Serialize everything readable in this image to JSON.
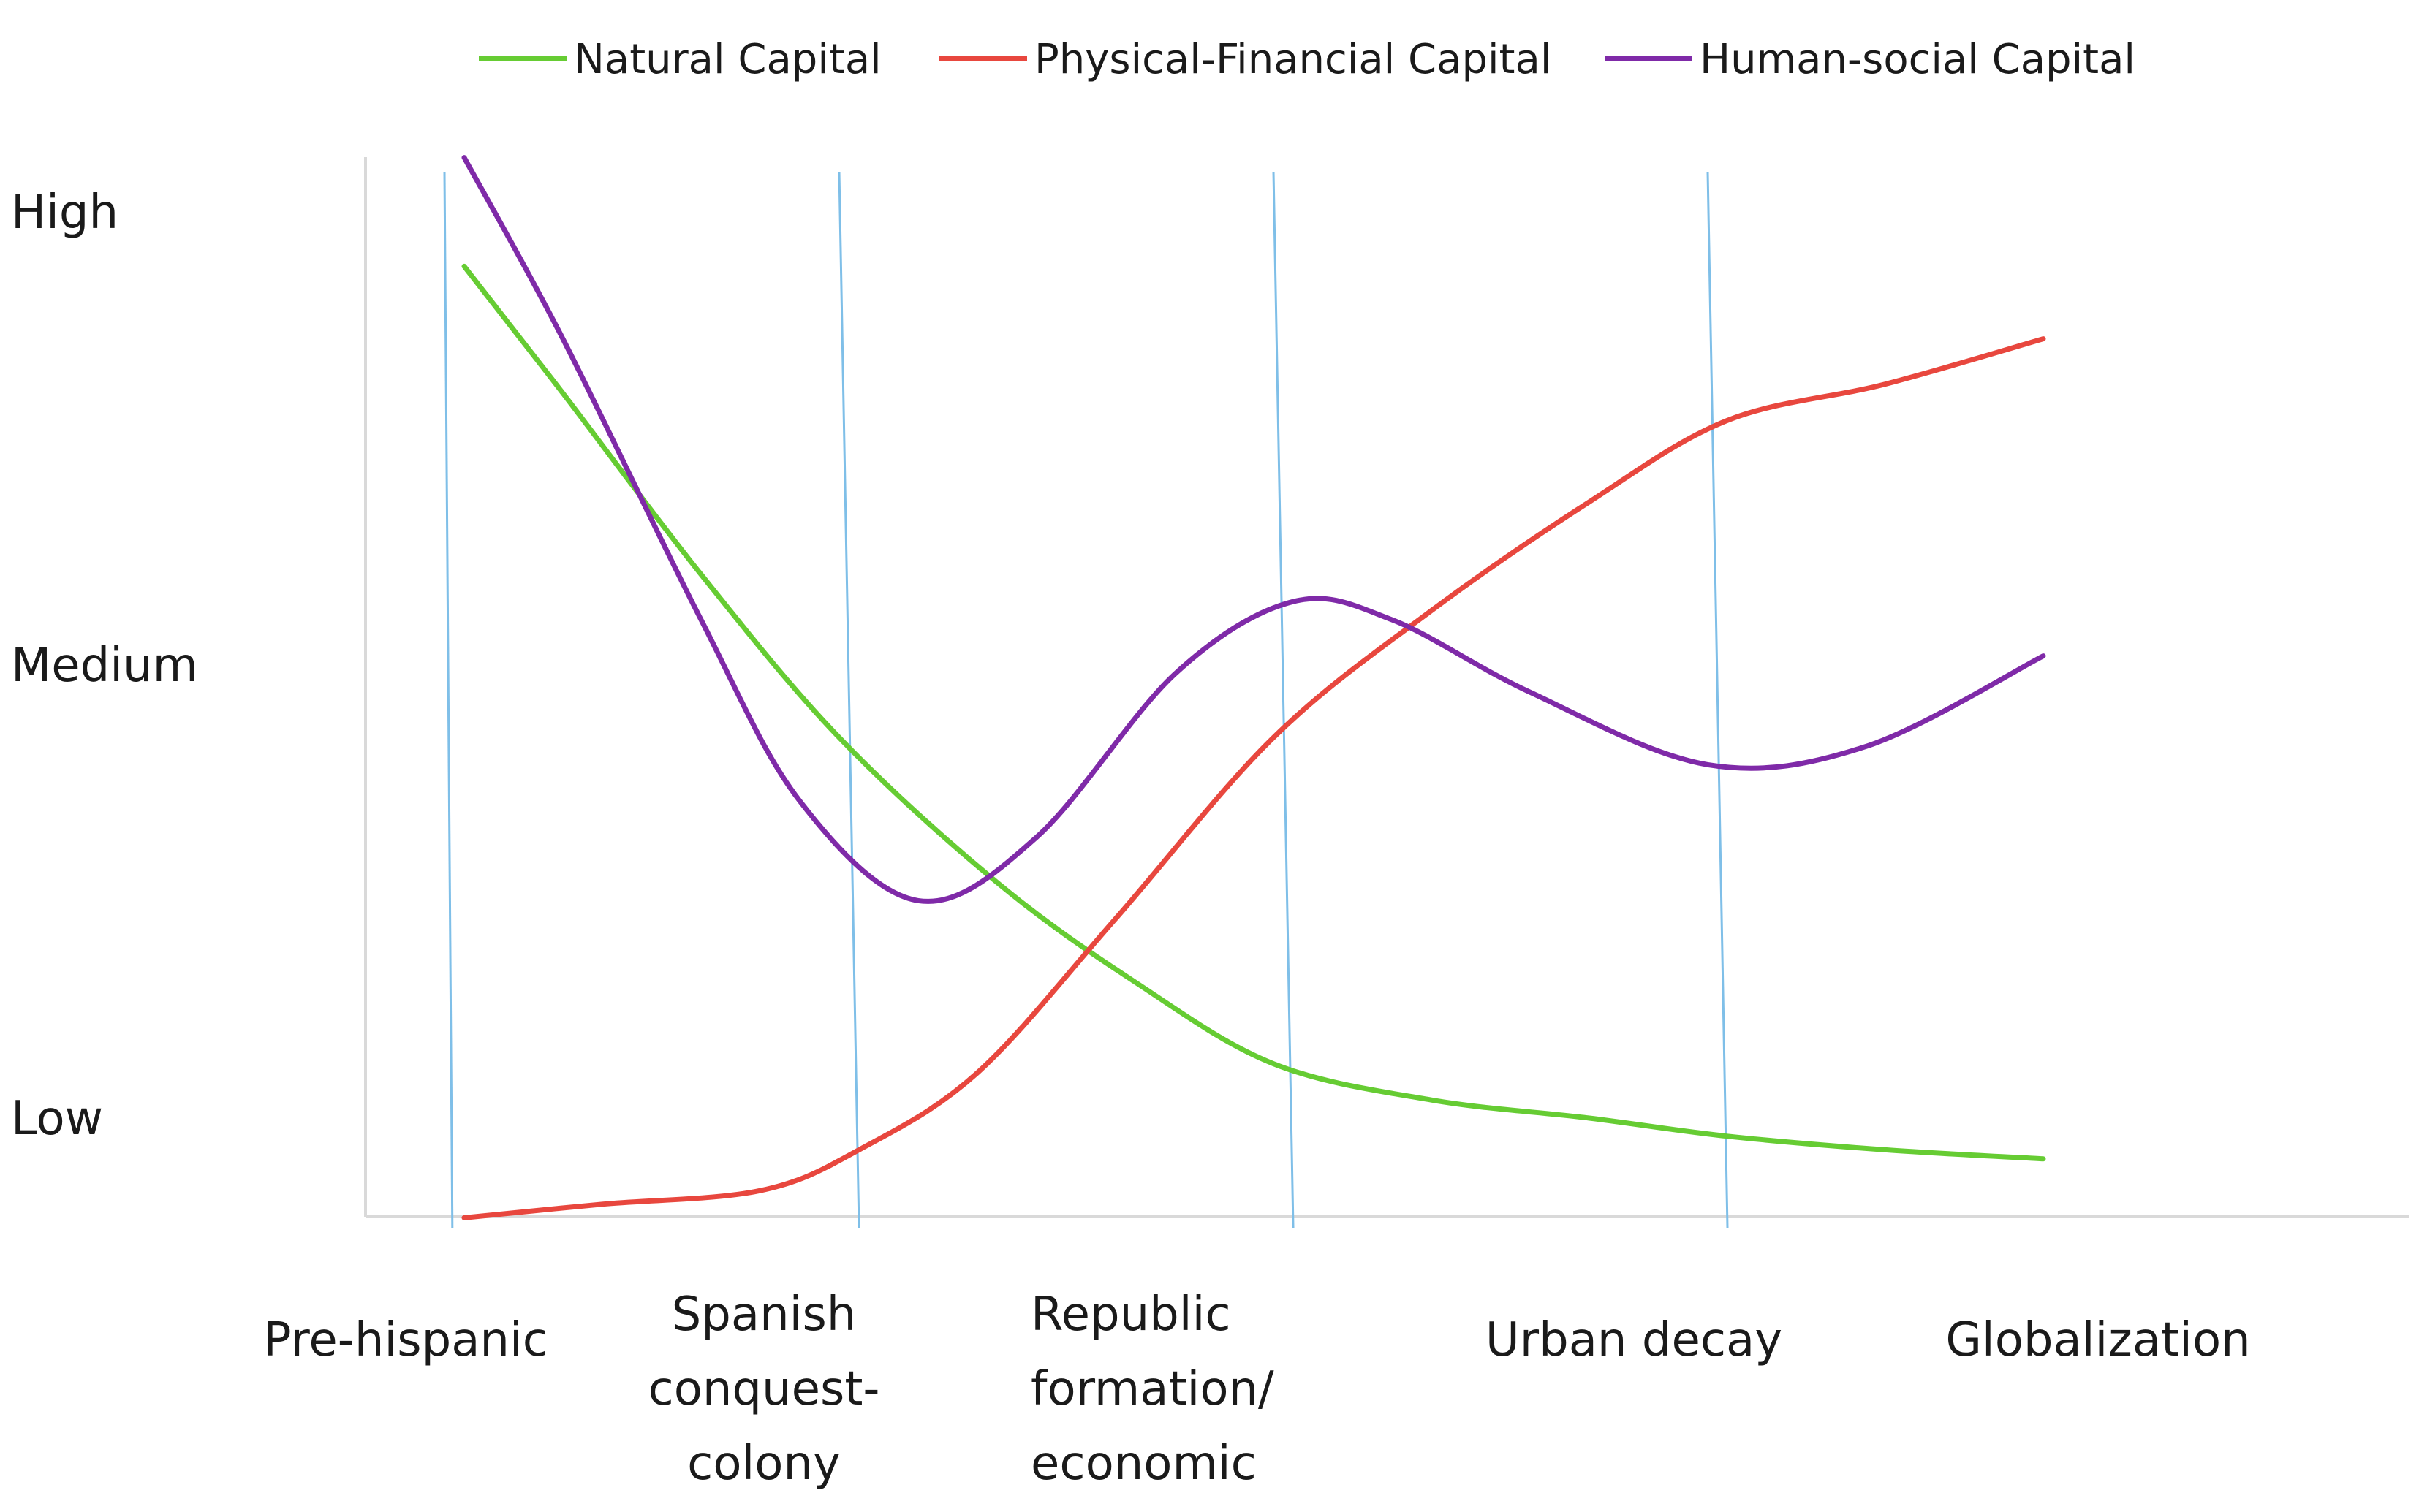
{
  "chart_data": {
    "type": "line",
    "title": "",
    "xlabel": "",
    "ylabel": "",
    "y_tick_labels": [
      "High",
      "Medium",
      "Low"
    ],
    "y_tick_values": [
      1,
      0.5,
      0
    ],
    "ylim": [
      -0.12,
      1.06
    ],
    "categories": [
      [
        "Pre-hispanic"
      ],
      [
        "Spanish",
        "conquest-",
        "colony"
      ],
      [
        "Republic",
        "formation/",
        "economic"
      ],
      [
        "Urban decay"
      ],
      [
        "Globalization"
      ]
    ],
    "period_dividers": [
      {
        "x_top": 0.2,
        "x_bottom": 0.22
      },
      {
        "x_top": 1.2,
        "x_bottom": 1.25
      },
      {
        "x_top": 2.3,
        "x_bottom": 2.35
      },
      {
        "x_top": 3.4,
        "x_bottom": 3.45
      }
    ],
    "legend_position": "top",
    "grid": false,
    "series": [
      {
        "name": "Natural Capital",
        "color": "#66cc33",
        "points": [
          [
            0.25,
            0.94
          ],
          [
            0.5,
            0.8
          ],
          [
            0.85,
            0.6
          ],
          [
            1.2,
            0.42
          ],
          [
            1.6,
            0.26
          ],
          [
            1.95,
            0.15
          ],
          [
            2.3,
            0.06
          ],
          [
            2.7,
            0.02
          ],
          [
            3.1,
            0.0
          ],
          [
            3.45,
            -0.02
          ],
          [
            3.85,
            -0.035
          ],
          [
            4.25,
            -0.045
          ]
        ]
      },
      {
        "name": "Physical-Financial Capital",
        "color": "#e8473e",
        "points": [
          [
            0.25,
            -0.11
          ],
          [
            0.6,
            -0.095
          ],
          [
            1.0,
            -0.08
          ],
          [
            1.25,
            -0.035
          ],
          [
            1.55,
            0.05
          ],
          [
            1.9,
            0.22
          ],
          [
            2.3,
            0.42
          ],
          [
            2.7,
            0.56
          ],
          [
            3.1,
            0.68
          ],
          [
            3.45,
            0.77
          ],
          [
            3.85,
            0.81
          ],
          [
            4.25,
            0.86
          ]
        ]
      },
      {
        "name": "Human-social Capital",
        "color": "#7f2aa8",
        "points": [
          [
            0.25,
            1.06
          ],
          [
            0.5,
            0.86
          ],
          [
            0.85,
            0.55
          ],
          [
            1.1,
            0.35
          ],
          [
            1.4,
            0.24
          ],
          [
            1.7,
            0.31
          ],
          [
            2.05,
            0.49
          ],
          [
            2.35,
            0.57
          ],
          [
            2.6,
            0.55
          ],
          [
            2.95,
            0.47
          ],
          [
            3.4,
            0.39
          ],
          [
            3.8,
            0.41
          ],
          [
            4.25,
            0.51
          ]
        ]
      }
    ]
  }
}
